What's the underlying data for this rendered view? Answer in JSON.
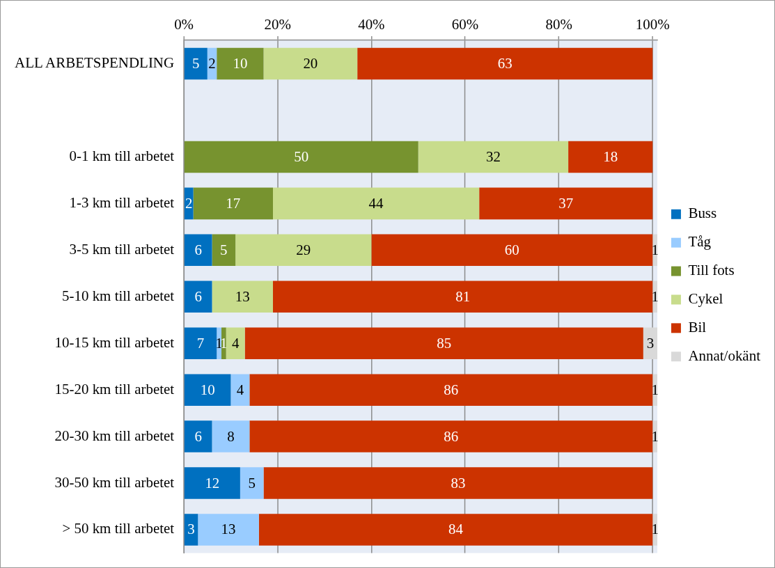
{
  "chart_data": {
    "type": "bar",
    "orientation": "horizontal",
    "stacked": true,
    "data_labels": true,
    "grid": "x",
    "legend": "right",
    "categories": [
      "ALL ARBETSPENDLING",
      null,
      "0-1 km till arbetet",
      "1-3 km till arbetet",
      "3-5 km till arbetet",
      "5-10 km till arbetet",
      "10-15 km till arbetet",
      "15-20 km till arbetet",
      "20-30 km till arbetet",
      "30-50 km till arbetet",
      "> 50 km till arbetet"
    ],
    "xlim": [
      0,
      101
    ],
    "xticks": [
      {
        "value": 0,
        "label": "0%"
      },
      {
        "value": 20,
        "label": "20%"
      },
      {
        "value": 40,
        "label": "40%"
      },
      {
        "value": 60,
        "label": "60%"
      },
      {
        "value": 80,
        "label": "80%"
      },
      {
        "value": 100,
        "label": "100%"
      }
    ],
    "series": [
      {
        "name": "Buss",
        "color": "#0070c0",
        "values": [
          5,
          null,
          null,
          2,
          6,
          6,
          7,
          10,
          6,
          12,
          3
        ]
      },
      {
        "name": "Tåg",
        "color": "#99ccff",
        "values": [
          2,
          null,
          null,
          null,
          null,
          null,
          1,
          4,
          8,
          5,
          13
        ]
      },
      {
        "name": "Till fots",
        "color": "#77932f",
        "values": [
          10,
          null,
          50,
          17,
          5,
          null,
          1,
          null,
          null,
          null,
          null
        ]
      },
      {
        "name": "Cykel",
        "color": "#c8dc8c",
        "values": [
          20,
          null,
          32,
          44,
          29,
          13,
          4,
          null,
          null,
          null,
          null
        ]
      },
      {
        "name": "Bil",
        "color": "#cc3300",
        "values": [
          63,
          null,
          18,
          37,
          60,
          81,
          85,
          86,
          86,
          83,
          84
        ]
      },
      {
        "name": "Annat/okänt",
        "color": "#d9d9d9",
        "values": [
          null,
          null,
          null,
          null,
          1,
          1,
          3,
          1,
          1,
          null,
          1
        ]
      }
    ]
  }
}
